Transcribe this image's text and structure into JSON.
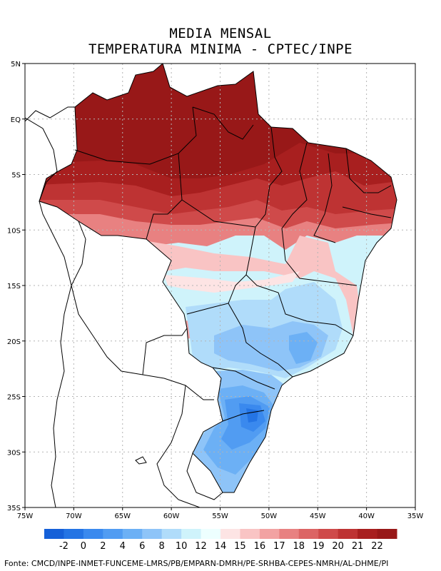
{
  "title": {
    "line1": "MEDIA MENSAL",
    "line2": "TEMPERATURA MINIMA - CPTEC/INPE"
  },
  "map": {
    "lon_range": [
      -75,
      -35
    ],
    "lat_range": [
      -35,
      5
    ],
    "grid": "dotted",
    "lat_ticks": [
      {
        "value": 5,
        "label": "5N"
      },
      {
        "value": 0,
        "label": "EQ"
      },
      {
        "value": -5,
        "label": "5S"
      },
      {
        "value": -10,
        "label": "10S"
      },
      {
        "value": -15,
        "label": "15S"
      },
      {
        "value": -20,
        "label": "20S"
      },
      {
        "value": -25,
        "label": "25S"
      },
      {
        "value": -30,
        "label": "30S"
      },
      {
        "value": -35,
        "label": "35S"
      }
    ],
    "lon_ticks": [
      {
        "value": -75,
        "label": "75W"
      },
      {
        "value": -70,
        "label": "70W"
      },
      {
        "value": -65,
        "label": "65W"
      },
      {
        "value": -60,
        "label": "60W"
      },
      {
        "value": -55,
        "label": "55W"
      },
      {
        "value": -50,
        "label": "50W"
      },
      {
        "value": -45,
        "label": "45W"
      },
      {
        "value": -40,
        "label": "40W"
      },
      {
        "value": -35,
        "label": "35W"
      }
    ]
  },
  "colorbar": {
    "labels": [
      "-2",
      "0",
      "2",
      "4",
      "6",
      "8",
      "10",
      "12",
      "14",
      "15",
      "16",
      "17",
      "18",
      "19",
      "20",
      "21",
      "22"
    ],
    "colors": [
      "#1560d8",
      "#2474e4",
      "#3a89ee",
      "#519cf2",
      "#6cb0f5",
      "#8ec4f8",
      "#b0dcfa",
      "#cff3fb",
      "#edffff",
      "#fde4e4",
      "#f9c4c4",
      "#f2a2a2",
      "#e88181",
      "#dc6464",
      "#cf4a4a",
      "#be3333",
      "#a81f1f",
      "#981818"
    ]
  },
  "source": "Fonte: CMCD/INPE-INMET-FUNCEME-LMRS/PB/EMPARN-DMRH/PE-SRHBA-CEPES-NMRH/AL-DHME/PI"
}
